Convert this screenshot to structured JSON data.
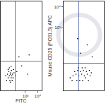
{
  "chart_data": [
    {
      "type": "scatter",
      "log": true,
      "marker": "dot",
      "color": "#000000",
      "tick_labels": "x",
      "x_label": "FITC",
      "xlim": [
        10,
        20000
      ],
      "ylim": [
        1,
        18000
      ],
      "xticks": [
        {
          "value": 1000,
          "label": "10³"
        },
        {
          "value": 10000,
          "label": "10⁴"
        }
      ],
      "gate_x": 150,
      "gate_y": 25,
      "x": [
        30,
        40,
        50,
        60,
        70,
        80,
        45,
        55,
        65,
        75,
        90,
        35,
        100,
        120,
        50,
        70,
        85,
        60,
        110,
        40,
        150,
        25,
        200,
        300,
        1500,
        500,
        2000
      ],
      "y": [
        3,
        4,
        5,
        6,
        4,
        5,
        8,
        3,
        7,
        9,
        6,
        6,
        4,
        7,
        12,
        14,
        3,
        2.5,
        10,
        10,
        5,
        5,
        8,
        40,
        6,
        15,
        50
      ]
    },
    {
      "type": "scatter",
      "log": true,
      "marker": "dot",
      "color": "#000000",
      "tick_labels": "y",
      "y_label": "Mouse CD25 (PC61.5) APC",
      "xlim": [
        1,
        18000
      ],
      "ylim": [
        1,
        18000
      ],
      "yticks": [
        {
          "value": 1000,
          "label": "10³"
        },
        {
          "value": 10000,
          "label": "10⁴"
        }
      ],
      "gate_x": 40,
      "gate_y": 20,
      "x": [
        5,
        10,
        20,
        40,
        80,
        150,
        300,
        600,
        15,
        30,
        60,
        120,
        250,
        500,
        8,
        25,
        50,
        100,
        200,
        400,
        800,
        35,
        90,
        180,
        60,
        300,
        1000,
        30
      ],
      "y": [
        4,
        5,
        6,
        5,
        6,
        5,
        6,
        5,
        8,
        9,
        8,
        9,
        8,
        9,
        3,
        3,
        3,
        3,
        4,
        3,
        7,
        12,
        12,
        12,
        60,
        150,
        40,
        300
      ]
    }
  ]
}
